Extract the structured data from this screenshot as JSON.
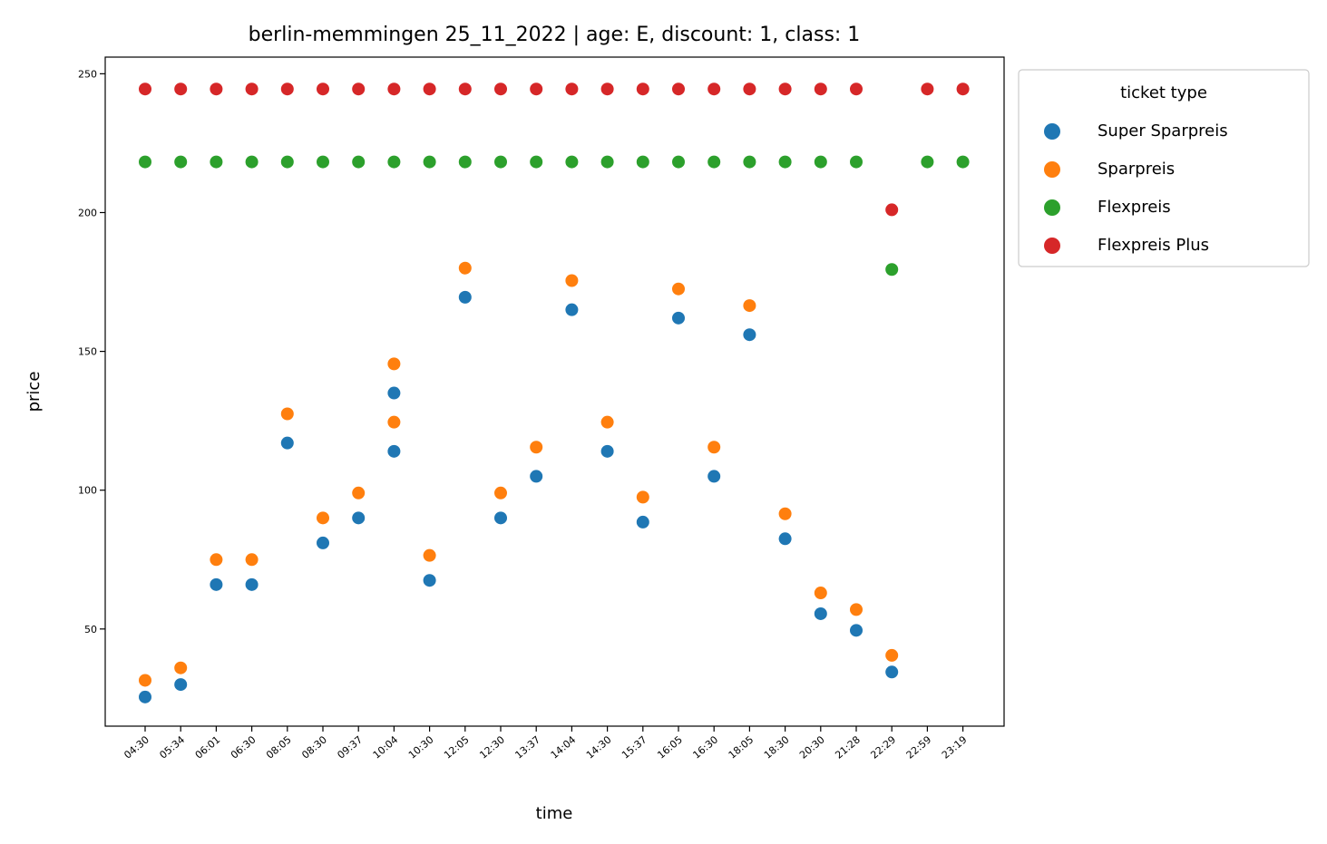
{
  "chart_data": {
    "type": "scatter",
    "title": "berlin-memmingen 25_11_2022 | age: E, discount: 1, class: 1",
    "xlabel": "time",
    "ylabel": "price",
    "ylim": [
      15,
      256
    ],
    "yticks": [
      50,
      100,
      150,
      200,
      250
    ],
    "grid": false,
    "legend_title": "ticket type",
    "legend_position": "outside-top-right",
    "categories": [
      "04:30",
      "05:34",
      "06:01",
      "06:30",
      "08:05",
      "08:30",
      "09:37",
      "10:04",
      "10:30",
      "12:05",
      "12:30",
      "13:37",
      "14:04",
      "14:30",
      "15:37",
      "16:05",
      "16:30",
      "18:05",
      "18:30",
      "20:30",
      "21:28",
      "22:29",
      "22:59",
      "23:19"
    ],
    "series": [
      {
        "name": "Super Sparpreis",
        "color": "#1f77b4",
        "points": [
          [
            "04:30",
            25.5
          ],
          [
            "05:34",
            30
          ],
          [
            "06:01",
            66
          ],
          [
            "06:30",
            66
          ],
          [
            "08:05",
            117
          ],
          [
            "08:30",
            81
          ],
          [
            "09:37",
            90
          ],
          [
            "10:04",
            114
          ],
          [
            "10:04",
            135
          ],
          [
            "10:30",
            67.5
          ],
          [
            "12:05",
            169.5
          ],
          [
            "12:30",
            90
          ],
          [
            "13:37",
            105
          ],
          [
            "14:04",
            165
          ],
          [
            "14:30",
            114
          ],
          [
            "15:37",
            88.5
          ],
          [
            "16:05",
            162
          ],
          [
            "16:30",
            105
          ],
          [
            "18:05",
            156
          ],
          [
            "18:30",
            82.5
          ],
          [
            "20:30",
            55.5
          ],
          [
            "21:28",
            49.5
          ],
          [
            "22:29",
            34.5
          ]
        ]
      },
      {
        "name": "Sparpreis",
        "color": "#ff7f0e",
        "points": [
          [
            "04:30",
            31.5
          ],
          [
            "05:34",
            36
          ],
          [
            "06:01",
            75
          ],
          [
            "06:30",
            75
          ],
          [
            "08:05",
            127.5
          ],
          [
            "08:30",
            90
          ],
          [
            "09:37",
            99
          ],
          [
            "10:04",
            124.5
          ],
          [
            "10:04",
            145.5
          ],
          [
            "10:30",
            76.5
          ],
          [
            "12:05",
            180
          ],
          [
            "12:30",
            99
          ],
          [
            "13:37",
            115.5
          ],
          [
            "14:04",
            175.5
          ],
          [
            "14:30",
            124.5
          ],
          [
            "15:37",
            97.5
          ],
          [
            "16:05",
            172.5
          ],
          [
            "16:30",
            115.5
          ],
          [
            "18:05",
            166.5
          ],
          [
            "18:30",
            91.5
          ],
          [
            "20:30",
            63
          ],
          [
            "21:28",
            57
          ],
          [
            "22:29",
            40.5
          ]
        ]
      },
      {
        "name": "Flexpreis",
        "color": "#2ca02c",
        "points": [
          [
            "04:30",
            218.25
          ],
          [
            "05:34",
            218.25
          ],
          [
            "06:01",
            218.25
          ],
          [
            "06:30",
            218.25
          ],
          [
            "08:05",
            218.25
          ],
          [
            "08:30",
            218.25
          ],
          [
            "09:37",
            218.25
          ],
          [
            "10:04",
            218.25
          ],
          [
            "10:30",
            218.25
          ],
          [
            "12:05",
            218.25
          ],
          [
            "12:30",
            218.25
          ],
          [
            "13:37",
            218.25
          ],
          [
            "14:04",
            218.25
          ],
          [
            "14:30",
            218.25
          ],
          [
            "15:37",
            218.25
          ],
          [
            "16:05",
            218.25
          ],
          [
            "16:30",
            218.25
          ],
          [
            "18:05",
            218.25
          ],
          [
            "18:30",
            218.25
          ],
          [
            "20:30",
            218.25
          ],
          [
            "21:28",
            218.25
          ],
          [
            "22:29",
            179.5
          ],
          [
            "22:59",
            218.25
          ],
          [
            "23:19",
            218.25
          ]
        ]
      },
      {
        "name": "Flexpreis Plus",
        "color": "#d62728",
        "points": [
          [
            "04:30",
            244.5
          ],
          [
            "05:34",
            244.5
          ],
          [
            "06:01",
            244.5
          ],
          [
            "06:30",
            244.5
          ],
          [
            "08:05",
            244.5
          ],
          [
            "08:30",
            244.5
          ],
          [
            "09:37",
            244.5
          ],
          [
            "10:04",
            244.5
          ],
          [
            "10:30",
            244.5
          ],
          [
            "12:05",
            244.5
          ],
          [
            "12:30",
            244.5
          ],
          [
            "13:37",
            244.5
          ],
          [
            "14:04",
            244.5
          ],
          [
            "14:30",
            244.5
          ],
          [
            "15:37",
            244.5
          ],
          [
            "16:05",
            244.5
          ],
          [
            "16:30",
            244.5
          ],
          [
            "18:05",
            244.5
          ],
          [
            "18:30",
            244.5
          ],
          [
            "20:30",
            244.5
          ],
          [
            "21:28",
            244.5
          ],
          [
            "22:29",
            201
          ],
          [
            "22:59",
            244.5
          ],
          [
            "23:19",
            244.5
          ]
        ]
      }
    ]
  }
}
